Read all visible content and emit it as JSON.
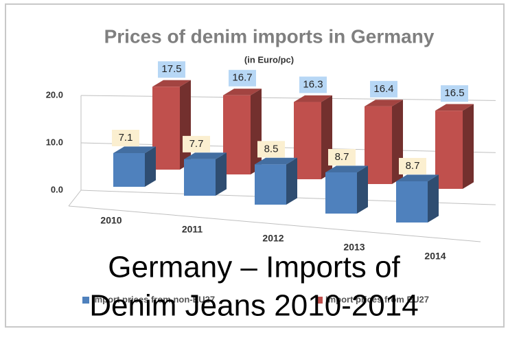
{
  "chart_data": {
    "type": "bar3d",
    "title": "Prices of denim imports in Germany",
    "subtitle": "(in Euro/pc)",
    "categories": [
      "2010",
      "2011",
      "2012",
      "2013",
      "2014"
    ],
    "series": [
      {
        "name": "Import prices from non-EU27",
        "color": "#4f81bd",
        "values": [
          7.1,
          7.7,
          8.5,
          8.7,
          8.7
        ]
      },
      {
        "name": "Import prices from EU27",
        "color": "#c0504d",
        "values": [
          17.5,
          16.7,
          16.3,
          16.4,
          16.5
        ]
      }
    ],
    "ylim": [
      0,
      20
    ],
    "yticks": [
      {
        "value": 0,
        "label": "0.0"
      },
      {
        "value": 10,
        "label": "10.0"
      },
      {
        "value": 20,
        "label": "20.0"
      }
    ],
    "grid": true,
    "caption": [
      "Germany – Imports of",
      "Denim Jeans  2010-2014"
    ]
  }
}
